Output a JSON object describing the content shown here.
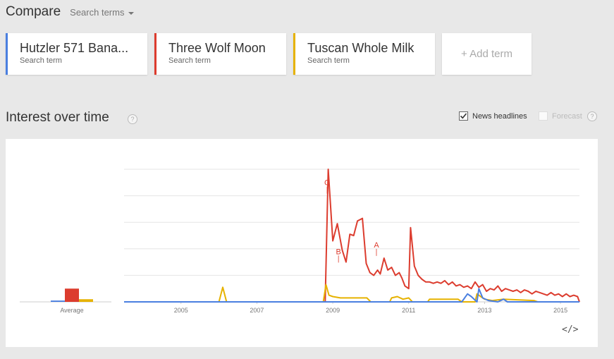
{
  "header": {
    "title": "Compare",
    "search_terms_label": "Search terms"
  },
  "terms": [
    {
      "name": "Hutzler 571 Bana...",
      "sub": "Search term",
      "color": "#4a7fe0"
    },
    {
      "name": "Three Wolf Moon",
      "sub": "Search term",
      "color": "#dc3c2e"
    },
    {
      "name": "Tuscan Whole Milk",
      "sub": "Search term",
      "color": "#e6b200"
    }
  ],
  "add_term_label": "+ Add term",
  "interest": {
    "title": "Interest over time",
    "help": "?",
    "news_headlines_label": "News headlines",
    "news_headlines_checked": true,
    "forecast_label": "Forecast",
    "forecast_enabled": false
  },
  "embed_icon": "code-icon",
  "chart_data": {
    "type": "line",
    "x_range": [
      "2004-01",
      "2015-12"
    ],
    "y_range": [
      0,
      100
    ],
    "x_tick_labels": [
      "2005",
      "2007",
      "2009",
      "2011",
      "2013",
      "2015"
    ],
    "x_tick_years": [
      2005,
      2007,
      2009,
      2011,
      2013,
      2015
    ],
    "average_label": "Average",
    "averages": [
      {
        "name": "Hutzler 571 Bana...",
        "value": 1
      },
      {
        "name": "Three Wolf Moon",
        "value": 10
      },
      {
        "name": "Tuscan Whole Milk",
        "value": 2
      }
    ],
    "annotations": [
      {
        "label": "C",
        "year": 2009.35,
        "value": 88
      },
      {
        "label": "B",
        "year": 2009.65,
        "value": 36
      },
      {
        "label": "A",
        "year": 2010.65,
        "value": 41
      }
    ],
    "series": [
      {
        "name": "Three Wolf Moon",
        "points": [
          [
            2004.0,
            0
          ],
          [
            2009.3,
            0
          ],
          [
            2009.38,
            100
          ],
          [
            2009.5,
            46
          ],
          [
            2009.62,
            59
          ],
          [
            2009.75,
            39
          ],
          [
            2009.85,
            30
          ],
          [
            2009.95,
            51
          ],
          [
            2010.05,
            50
          ],
          [
            2010.15,
            61
          ],
          [
            2010.28,
            63
          ],
          [
            2010.38,
            29
          ],
          [
            2010.48,
            22
          ],
          [
            2010.58,
            20
          ],
          [
            2010.68,
            24
          ],
          [
            2010.75,
            21
          ],
          [
            2010.85,
            33
          ],
          [
            2010.95,
            24
          ],
          [
            2011.05,
            26
          ],
          [
            2011.15,
            20
          ],
          [
            2011.25,
            22
          ],
          [
            2011.32,
            18
          ],
          [
            2011.4,
            12
          ],
          [
            2011.5,
            10
          ],
          [
            2011.55,
            56
          ],
          [
            2011.65,
            27
          ],
          [
            2011.75,
            20
          ],
          [
            2011.85,
            17
          ],
          [
            2011.95,
            15
          ],
          [
            2012.05,
            15
          ],
          [
            2012.15,
            14
          ],
          [
            2012.25,
            15
          ],
          [
            2012.35,
            14
          ],
          [
            2012.45,
            16
          ],
          [
            2012.55,
            13
          ],
          [
            2012.65,
            15
          ],
          [
            2012.75,
            12
          ],
          [
            2012.85,
            13
          ],
          [
            2012.95,
            11
          ],
          [
            2013.05,
            12
          ],
          [
            2013.15,
            10
          ],
          [
            2013.25,
            15
          ],
          [
            2013.35,
            11
          ],
          [
            2013.45,
            13
          ],
          [
            2013.55,
            8
          ],
          [
            2013.65,
            10
          ],
          [
            2013.75,
            9
          ],
          [
            2013.85,
            12
          ],
          [
            2013.95,
            8
          ],
          [
            2014.05,
            10
          ],
          [
            2014.15,
            9
          ],
          [
            2014.25,
            8
          ],
          [
            2014.35,
            9
          ],
          [
            2014.45,
            7
          ],
          [
            2014.55,
            9
          ],
          [
            2014.65,
            8
          ],
          [
            2014.75,
            6
          ],
          [
            2014.85,
            8
          ],
          [
            2014.95,
            7
          ],
          [
            2015.05,
            6
          ],
          [
            2015.15,
            5
          ],
          [
            2015.25,
            7
          ],
          [
            2015.35,
            5
          ],
          [
            2015.45,
            6
          ],
          [
            2015.55,
            4
          ],
          [
            2015.65,
            6
          ],
          [
            2015.75,
            4
          ],
          [
            2015.85,
            5
          ],
          [
            2015.95,
            4
          ],
          [
            2016.0,
            0
          ]
        ]
      },
      {
        "name": "Tuscan Whole Milk",
        "points": [
          [
            2004.0,
            0
          ],
          [
            2006.5,
            0
          ],
          [
            2006.6,
            11
          ],
          [
            2006.7,
            0
          ],
          [
            2009.25,
            0
          ],
          [
            2009.32,
            13
          ],
          [
            2009.4,
            5
          ],
          [
            2009.5,
            4
          ],
          [
            2009.7,
            3
          ],
          [
            2010.4,
            3
          ],
          [
            2010.5,
            0
          ],
          [
            2011.0,
            0
          ],
          [
            2011.05,
            3
          ],
          [
            2011.2,
            4
          ],
          [
            2011.35,
            2
          ],
          [
            2011.5,
            3
          ],
          [
            2011.6,
            0
          ],
          [
            2012.0,
            0
          ],
          [
            2012.05,
            2
          ],
          [
            2012.8,
            2
          ],
          [
            2012.9,
            0
          ],
          [
            2013.25,
            0
          ],
          [
            2013.3,
            6
          ],
          [
            2013.4,
            4
          ],
          [
            2013.5,
            2
          ],
          [
            2013.7,
            1
          ],
          [
            2014.0,
            2
          ],
          [
            2014.8,
            1
          ],
          [
            2014.9,
            0
          ],
          [
            2016.0,
            0
          ]
        ]
      },
      {
        "name": "Hutzler 571 Bana...",
        "points": [
          [
            2004.0,
            0
          ],
          [
            2012.9,
            0
          ],
          [
            2013.05,
            6
          ],
          [
            2013.15,
            4
          ],
          [
            2013.3,
            0
          ],
          [
            2013.35,
            10
          ],
          [
            2013.45,
            3
          ],
          [
            2013.6,
            1
          ],
          [
            2013.85,
            0
          ],
          [
            2014.0,
            2
          ],
          [
            2014.1,
            0
          ],
          [
            2016.0,
            0
          ]
        ]
      }
    ]
  }
}
